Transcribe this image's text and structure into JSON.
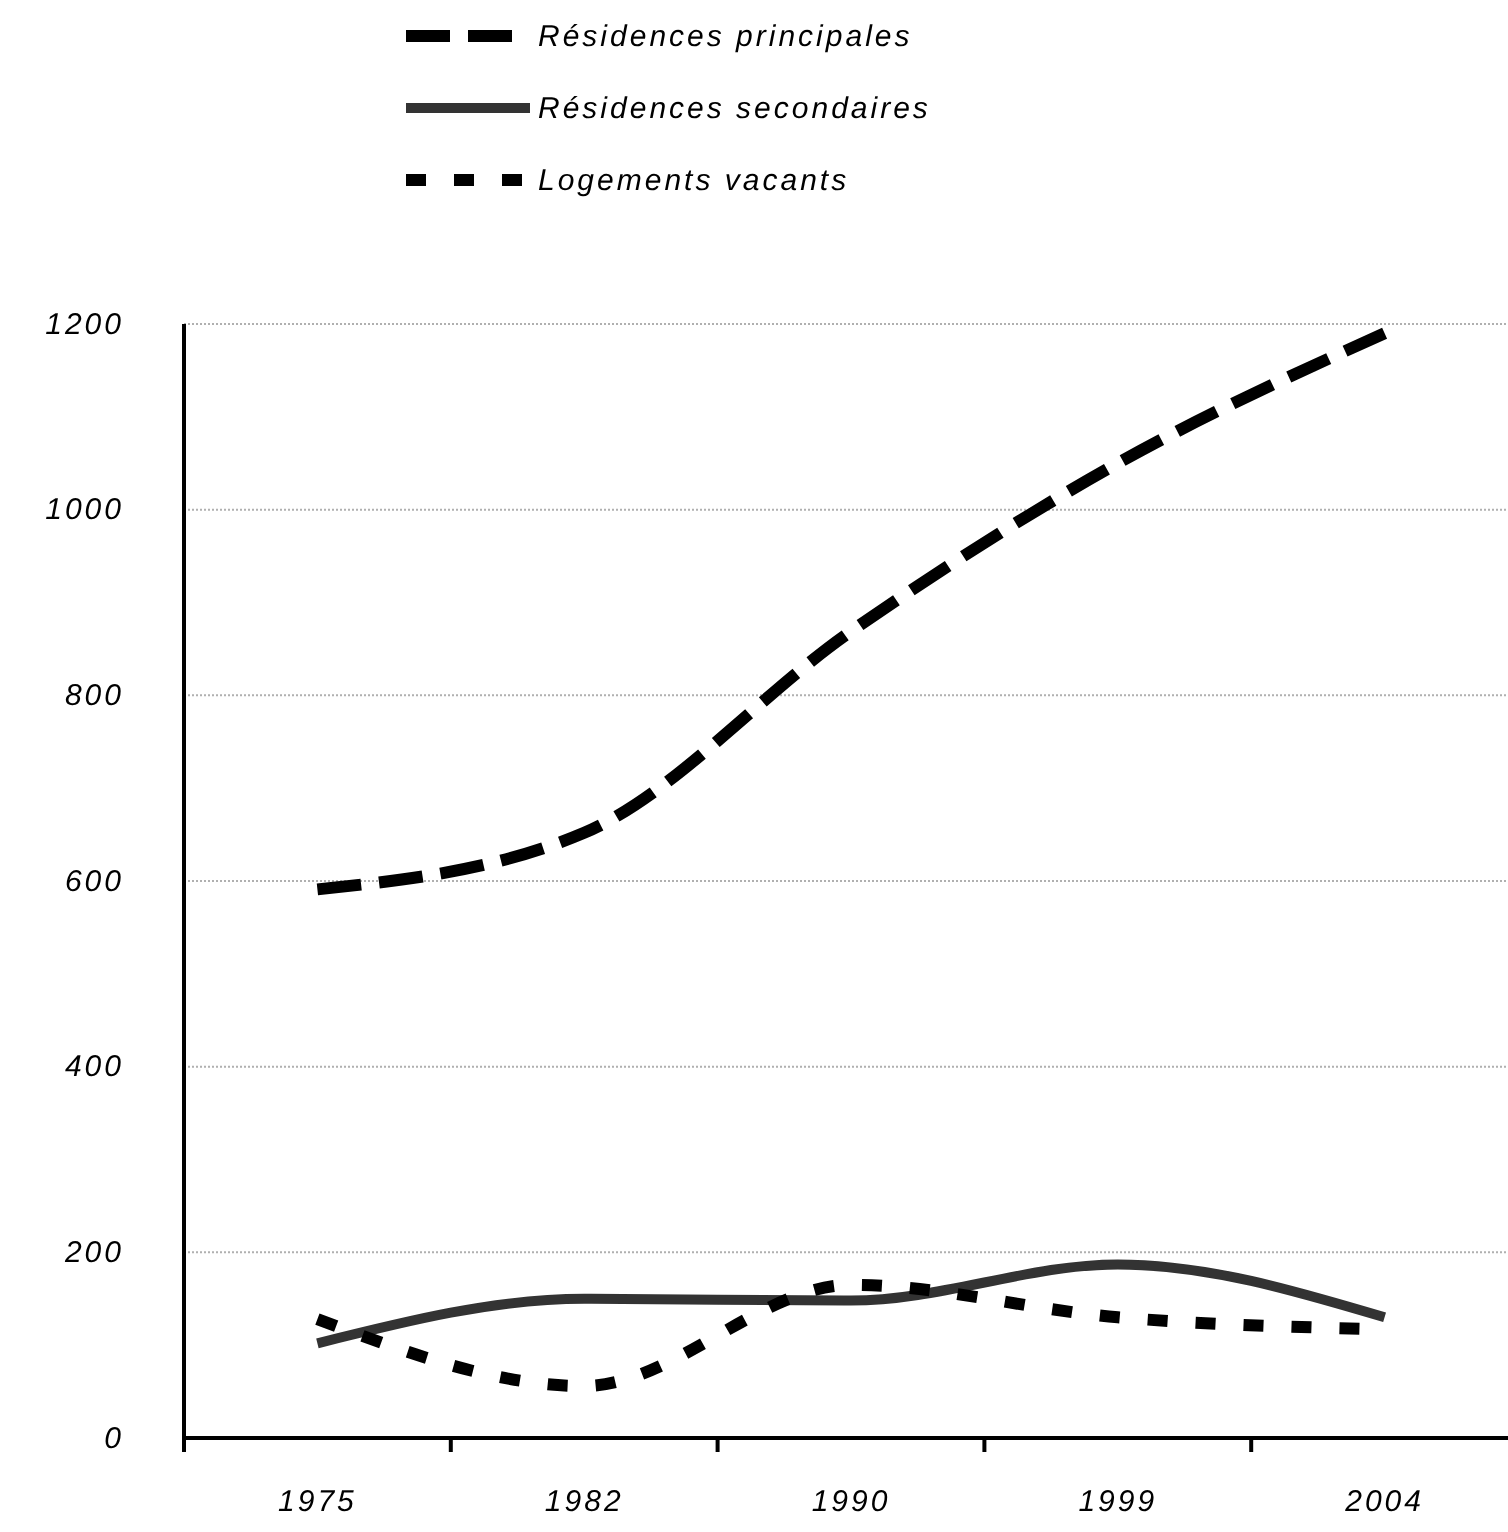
{
  "chart_data": {
    "type": "line",
    "categories": [
      "1975",
      "1982",
      "1990",
      "1999",
      "2004"
    ],
    "series": [
      {
        "name": "Résidences principales",
        "color": "#000000",
        "line_style": "dashed",
        "values": [
          591,
          652,
          869,
          1050,
          1190
        ]
      },
      {
        "name": "Résidences secondaires",
        "color": "#333333",
        "line_style": "solid",
        "values": [
          102,
          150,
          148,
          187,
          130
        ]
      },
      {
        "name": "Logements vacants",
        "color": "#000000",
        "line_style": "dotted",
        "values": [
          128,
          56,
          165,
          130,
          117
        ]
      }
    ],
    "ylim": [
      0,
      1200
    ],
    "yticks": [
      0,
      200,
      400,
      600,
      800,
      1000,
      1200
    ],
    "grid": "y",
    "legend": "top",
    "marker": "none"
  }
}
